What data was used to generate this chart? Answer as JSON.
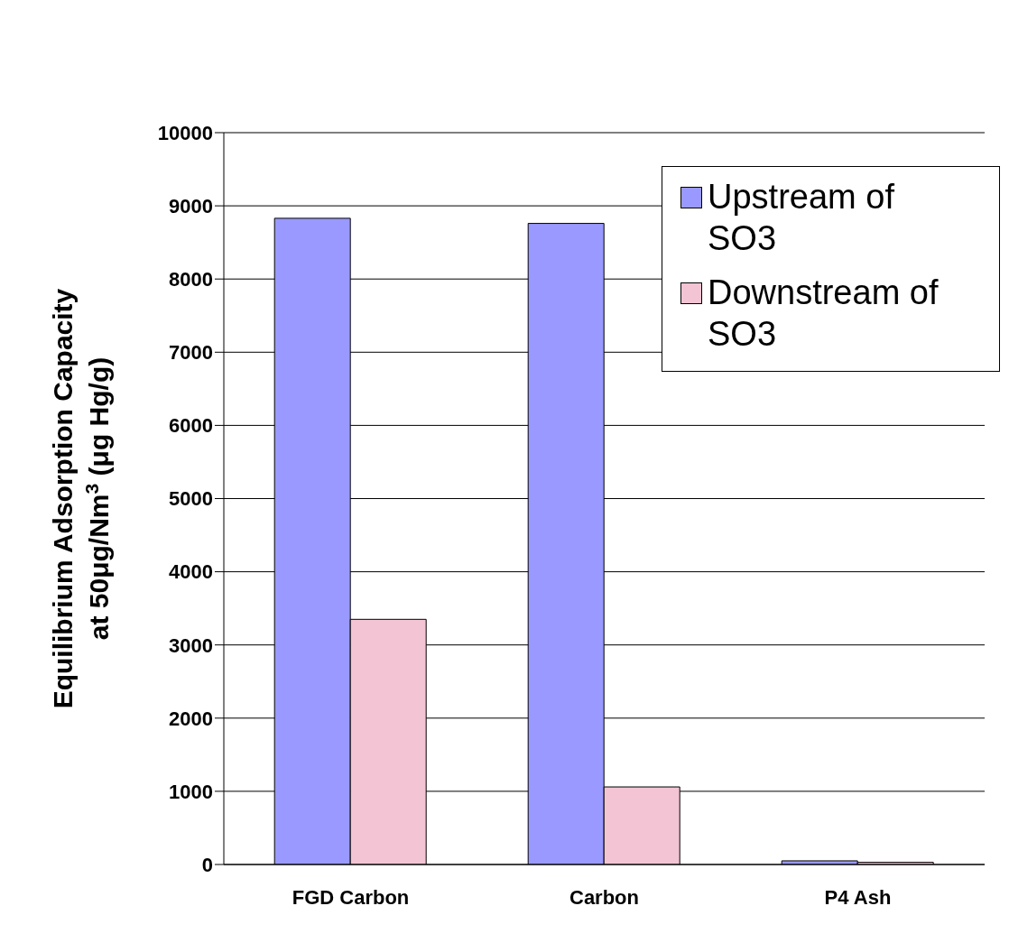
{
  "chart_data": {
    "type": "bar",
    "ylabel": "Equilibrium Adsorption Capacity\nat 50μg/Nm$^{3}$ (μg Hg/g)",
    "categories": [
      "FGD Carbon",
      "Carbon",
      "P4 Ash"
    ],
    "series": [
      {
        "name": "Upstream of SO3",
        "color": "#9999ff",
        "values": [
          8830,
          8760,
          50
        ]
      },
      {
        "name": "Downstream of SO3",
        "color": "#f2c4d4",
        "values": [
          3350,
          1060,
          30
        ]
      }
    ],
    "ylim": [
      0,
      10000
    ],
    "yticks": [
      0,
      1000,
      2000,
      3000,
      4000,
      5000,
      6000,
      7000,
      8000,
      9000,
      10000
    ],
    "grid": "y",
    "legend": "top right"
  }
}
